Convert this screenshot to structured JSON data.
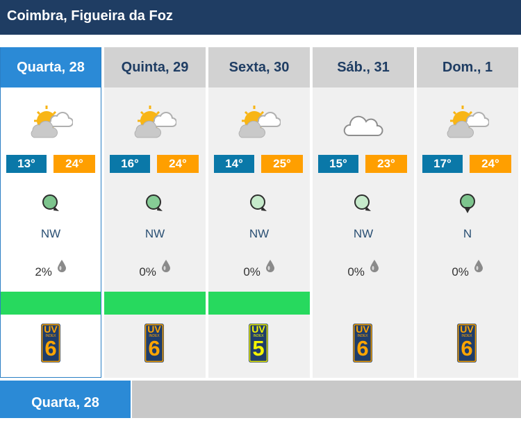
{
  "location_title": "Coimbra, Figueira da Foz",
  "days": [
    {
      "label": "Quarta, 28",
      "icon": "sun-cloud-icon",
      "tmin": "13°",
      "tmax": "24°",
      "wind_dir": "NW",
      "precip": "2%",
      "uv_label": "UV",
      "uv_sub": "INDEX",
      "uv": "6",
      "bar": true,
      "selected": true
    },
    {
      "label": "Quinta, 29",
      "icon": "sun-cloud-icon",
      "tmin": "16°",
      "tmax": "24°",
      "wind_dir": "NW",
      "precip": "0%",
      "uv_label": "UV",
      "uv_sub": "INDEX",
      "uv": "6",
      "bar": true,
      "selected": false
    },
    {
      "label": "Sexta, 30",
      "icon": "sun-cloud-icon",
      "tmin": "14°",
      "tmax": "25°",
      "wind_dir": "NW",
      "precip": "0%",
      "uv_label": "UV",
      "uv_sub": "INDEX",
      "uv": "5",
      "bar": true,
      "selected": false
    },
    {
      "label": "Sáb., 31",
      "icon": "cloud-icon",
      "tmin": "15°",
      "tmax": "23°",
      "wind_dir": "NW",
      "precip": "0%",
      "uv_label": "UV",
      "uv_sub": "INDEX",
      "uv": "6",
      "bar": false,
      "selected": false
    },
    {
      "label": "Dom., 1",
      "icon": "sun-cloud-icon",
      "tmin": "17°",
      "tmax": "24°",
      "wind_dir": "N",
      "precip": "0%",
      "uv_label": "UV",
      "uv_sub": "INDEX",
      "uv": "6",
      "bar": false,
      "selected": false
    }
  ],
  "bottom_tab": "Quarta, 28",
  "colors": {
    "header_bg": "#1f3d63",
    "selected_tab": "#2b8ad6",
    "tmin_bg": "#0a78a8",
    "tmax_bg": "#ff9f00",
    "bar_green": "#27d95e",
    "uv_badge_bg": "#1f3d6a",
    "uv6_color": "#ffa500",
    "uv5_color": "#f4f400"
  }
}
